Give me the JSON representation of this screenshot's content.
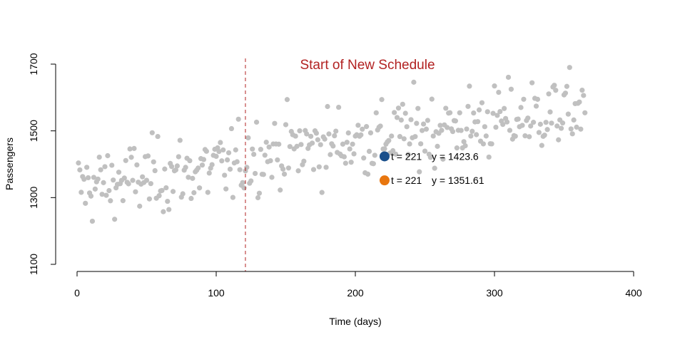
{
  "chart_data": {
    "type": "scatter",
    "xlabel": "Time (days)",
    "ylabel": "Passengers",
    "xlim": [
      0,
      400
    ],
    "ylim": [
      1100,
      1700
    ],
    "x_ticks": [
      0,
      100,
      200,
      300,
      400
    ],
    "y_ticks": [
      1100,
      1300,
      1500,
      1700
    ],
    "grid": false,
    "point_color": "#c0c0c0",
    "annotation": {
      "text": "Start of New Schedule",
      "color": "#b22222",
      "line_x": 121,
      "line_color": "#b22222"
    },
    "highlights": [
      {
        "t": 221,
        "y": 1423.6,
        "color": "#1a4f8b",
        "label_t": "t =  221",
        "label_y": "y =  1423.6"
      },
      {
        "t": 221,
        "y": 1351.61,
        "color": "#e8760f",
        "label_t": "t =  221",
        "label_y": "y =  1351.61"
      }
    ],
    "points_base": 1330,
    "points_end": 1540,
    "points_count": 365
  }
}
